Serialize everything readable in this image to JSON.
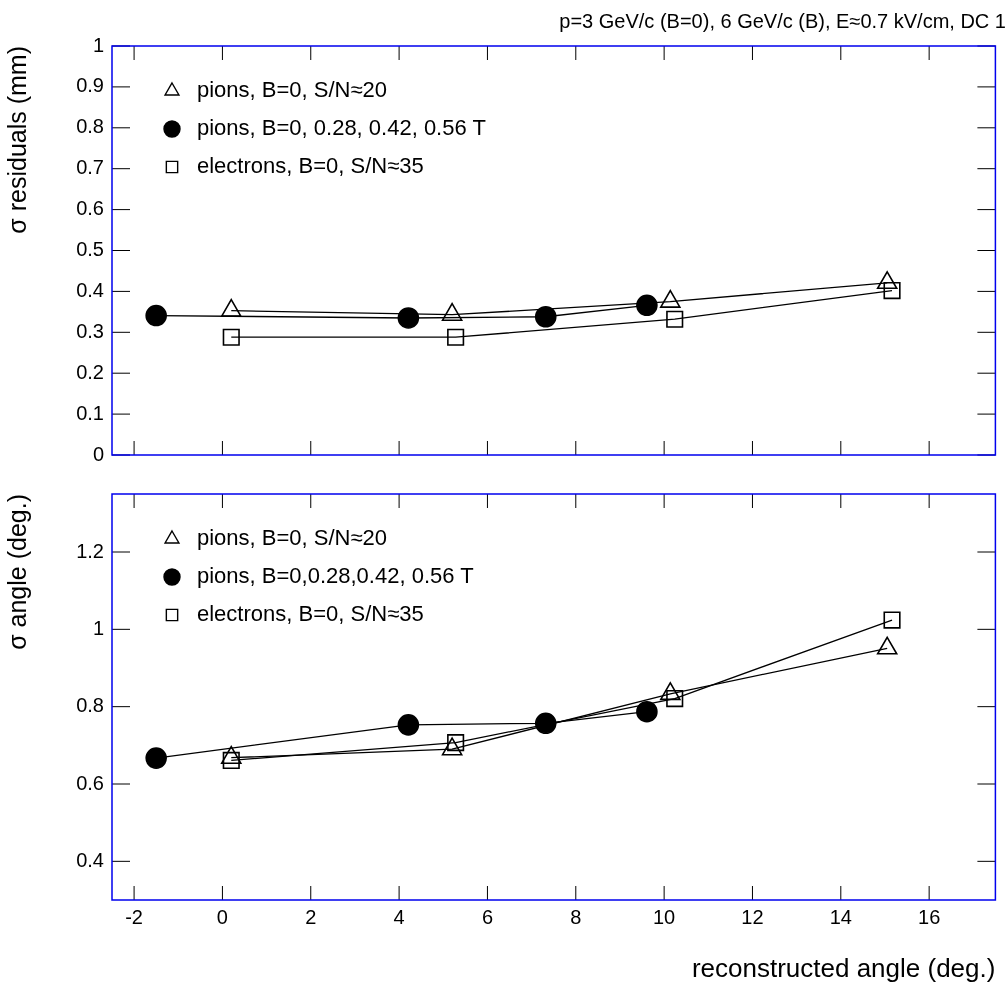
{
  "chart_data": [
    {
      "type": "line",
      "title": "p=3 GeV/c (B=0), 6 GeV/c (B), E≈0.7 kV/cm, DC 1",
      "ylabel": "σ residuals (mm)",
      "xlim": [
        -2.5,
        17.5
      ],
      "xticks": [
        -2,
        0,
        2,
        4,
        6,
        8,
        10,
        12,
        14,
        16
      ],
      "ylim": [
        0,
        1
      ],
      "yticks": [
        0,
        0.1,
        0.2,
        0.3,
        0.4,
        0.5,
        0.6,
        0.7,
        0.8,
        0.9,
        1
      ],
      "tick_labels": "y",
      "legend": "top left",
      "grid": false,
      "series": [
        {
          "name": "pions, B=0, S/N≈20",
          "color": "#000000",
          "marker": "triangle",
          "x": [
            0.2,
            5.2,
            10.14,
            15.05
          ],
          "values": [
            0.353,
            0.343,
            0.375,
            0.421
          ]
        },
        {
          "name": "pions, B=0, 0.28, 0.42, 0.56 T",
          "color": "#000000",
          "marker": "circle",
          "x": [
            -1.5,
            4.21,
            7.32,
            9.61
          ],
          "values": [
            0.341,
            0.335,
            0.338,
            0.366
          ]
        },
        {
          "name": "electrons, B=0, S/N≈35",
          "color": "#000000",
          "marker": "square",
          "x": [
            0.2,
            5.28,
            10.24,
            15.16
          ],
          "values": [
            0.288,
            0.288,
            0.332,
            0.402
          ]
        }
      ]
    },
    {
      "type": "line",
      "xlabel": "reconstructed angle (deg.)",
      "ylabel": "σ angle (deg.)",
      "xlim": [
        -2.5,
        17.5
      ],
      "xticks": [
        -2,
        0,
        2,
        4,
        6,
        8,
        10,
        12,
        14,
        16
      ],
      "ylim": [
        0.3,
        1.35
      ],
      "yticks": [
        0.4,
        0.6,
        0.8,
        1,
        1.2
      ],
      "legend": "top left",
      "grid": false,
      "series": [
        {
          "name": "pions, B=0, S/N≈20",
          "color": "#000000",
          "marker": "triangle",
          "x": [
            0.2,
            5.2,
            10.14,
            15.05
          ],
          "values": [
            0.668,
            0.69,
            0.833,
            0.951
          ]
        },
        {
          "name": "pions, B=0,0.28,0.42, 0.56 T",
          "color": "#000000",
          "marker": "circle",
          "x": [
            -1.5,
            4.21,
            7.32,
            9.61
          ],
          "values": [
            0.667,
            0.753,
            0.757,
            0.787
          ]
        },
        {
          "name": "electrons, B=0, S/N≈35",
          "color": "#000000",
          "marker": "square",
          "x": [
            0.2,
            5.28,
            10.24,
            15.16
          ],
          "values": [
            0.661,
            0.707,
            0.821,
            1.024
          ]
        }
      ]
    }
  ]
}
